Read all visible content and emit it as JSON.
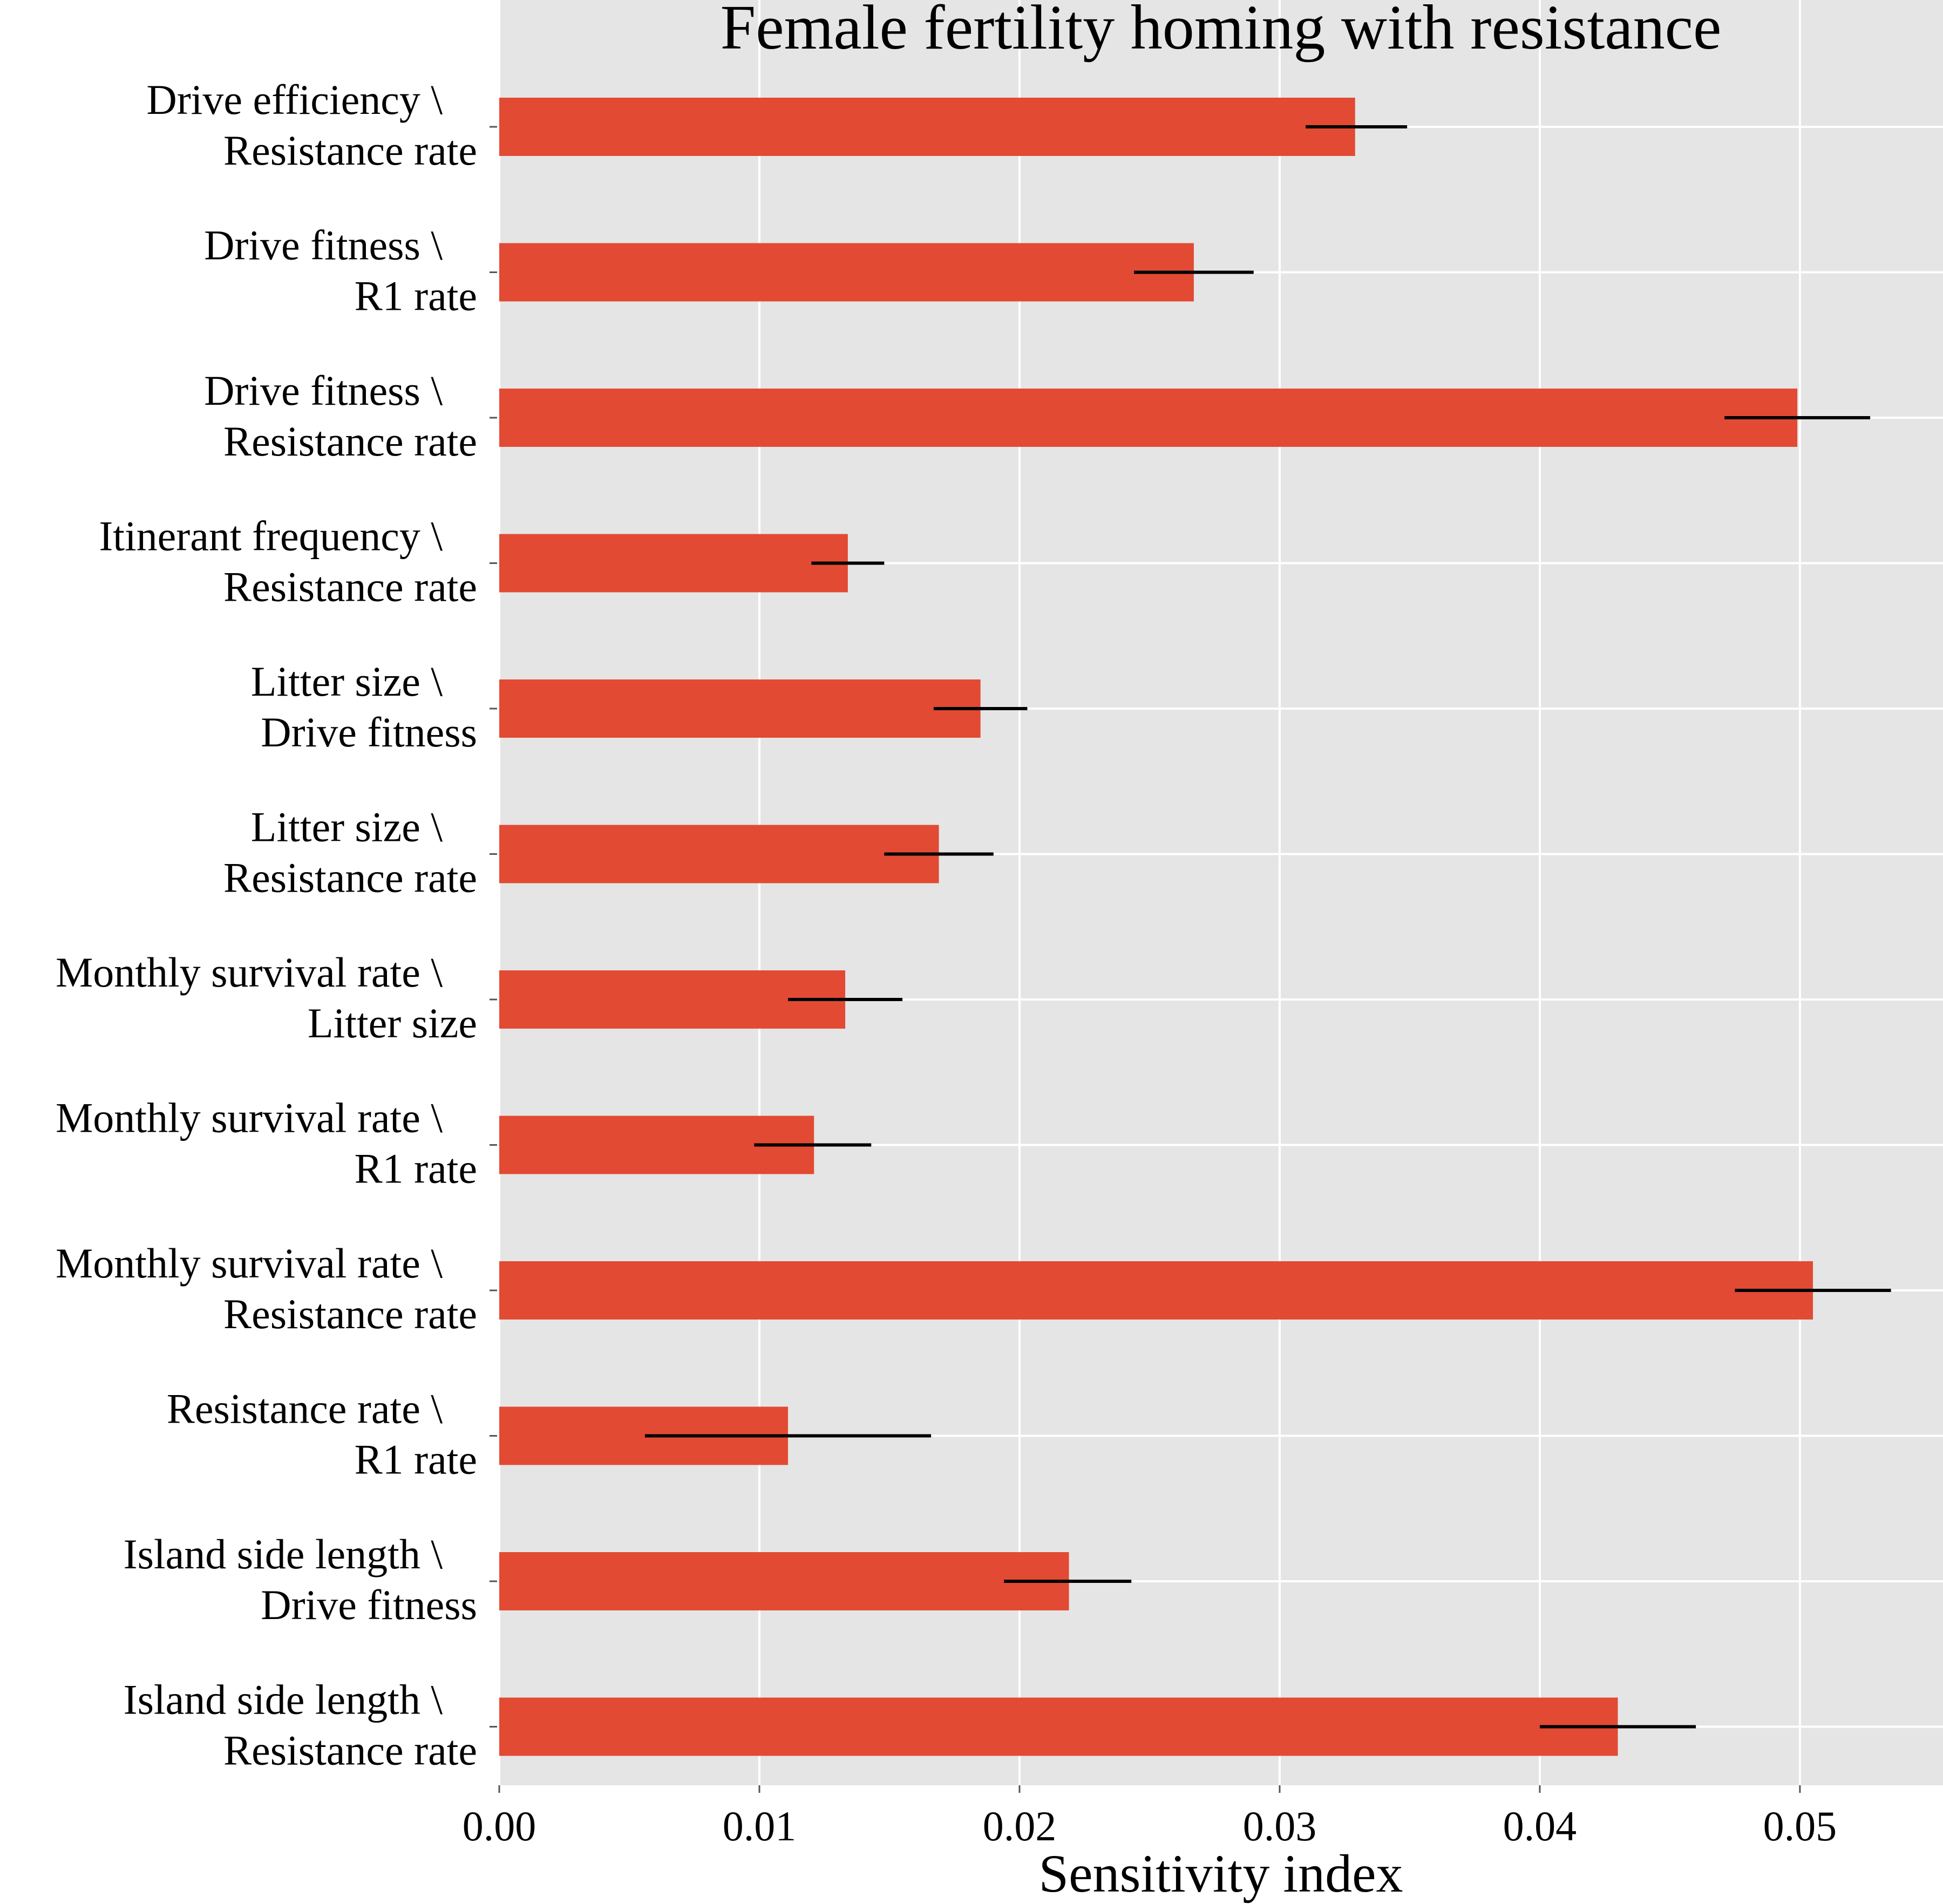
{
  "chart_data": {
    "type": "bar",
    "orientation": "horizontal",
    "title": "Female fertility homing with resistance",
    "xlabel": "Sensitivity index",
    "ylabel": "",
    "xlim": [
      0,
      0.0555
    ],
    "xticks": [
      "0.00",
      "0.01",
      "0.02",
      "0.03",
      "0.04",
      "0.05"
    ],
    "xtick_values": [
      0,
      0.01,
      0.02,
      0.03,
      0.04,
      0.05
    ],
    "grid": true,
    "bar_color": "#e24a33",
    "error_bar_color": "#000000",
    "background_color": "#e5e5e5",
    "categories": [
      [
        "Drive efficiency \\",
        "Resistance rate"
      ],
      [
        "Drive fitness \\",
        "R1 rate"
      ],
      [
        "Drive fitness \\",
        "Resistance rate"
      ],
      [
        "Itinerant frequency \\",
        "Resistance rate"
      ],
      [
        "Litter size \\",
        "Drive fitness"
      ],
      [
        "Litter size \\",
        "Resistance rate"
      ],
      [
        "Monthly survival rate \\",
        "Litter size"
      ],
      [
        "Monthly survival rate \\",
        "R1 rate"
      ],
      [
        "Monthly survival rate \\",
        "Resistance rate"
      ],
      [
        "Resistance rate \\",
        "R1 rate"
      ],
      [
        "Island side length \\",
        "Drive fitness"
      ],
      [
        "Island side length \\",
        "Resistance rate"
      ]
    ],
    "values": [
      0.0329,
      0.0267,
      0.0499,
      0.0134,
      0.0185,
      0.0169,
      0.0133,
      0.0121,
      0.0505,
      0.0111,
      0.0219,
      0.043
    ],
    "error_low": [
      0.031,
      0.0244,
      0.0471,
      0.012,
      0.0167,
      0.0148,
      0.0111,
      0.0098,
      0.0475,
      0.0056,
      0.0194,
      0.04
    ],
    "error_high": [
      0.0349,
      0.029,
      0.0527,
      0.0148,
      0.0203,
      0.019,
      0.0155,
      0.0143,
      0.0535,
      0.0166,
      0.0243,
      0.046
    ]
  }
}
